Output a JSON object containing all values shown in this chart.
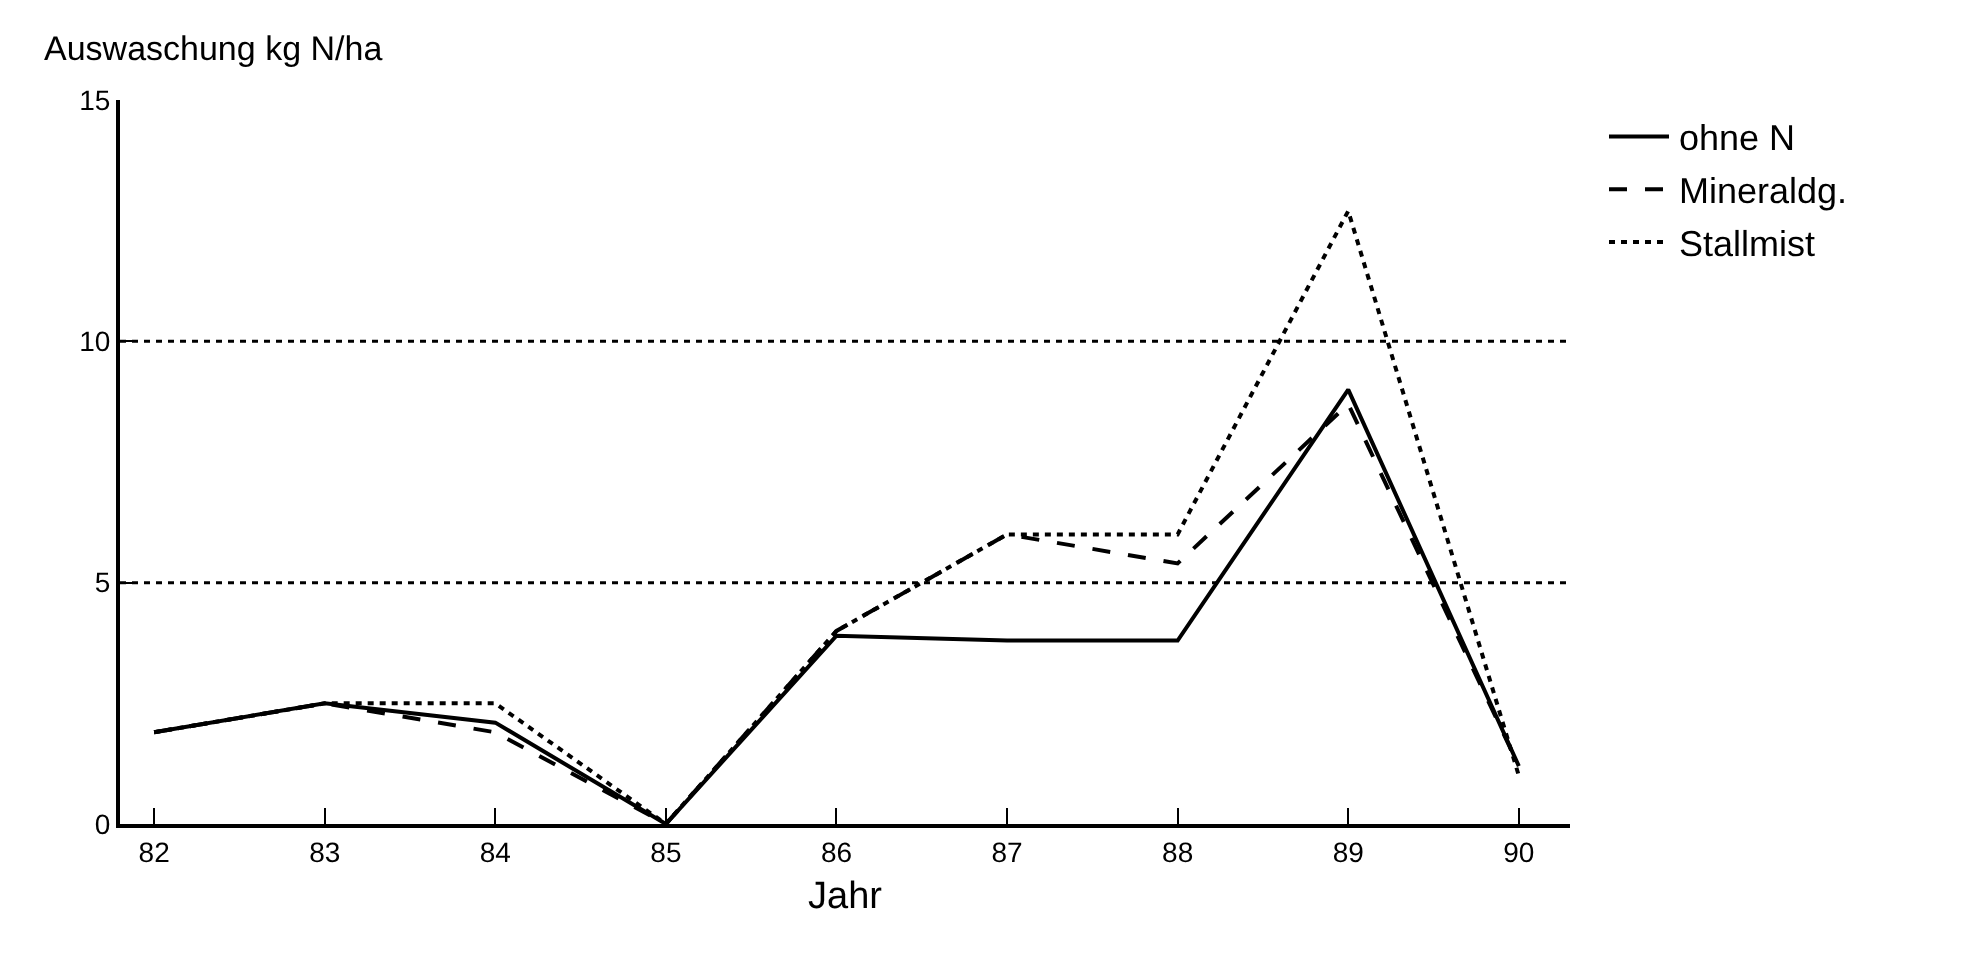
{
  "chart_data": {
    "type": "line",
    "ylabel": "Auswaschung kg N/ha",
    "xlabel": "Jahr",
    "x": [
      82,
      83,
      84,
      85,
      86,
      87,
      88,
      89,
      90
    ],
    "series": [
      {
        "name": "ohne N",
        "color": "#000000",
        "line_style": "solid",
        "values": [
          1.9,
          2.5,
          2.1,
          0,
          3.9,
          3.8,
          3.8,
          9.0,
          1.2
        ]
      },
      {
        "name": "Mineraldg.",
        "color": "#000000",
        "line_style": "dashed",
        "values": [
          1.9,
          2.5,
          1.9,
          0,
          4.0,
          6.0,
          5.4,
          8.7,
          1.2
        ]
      },
      {
        "name": "Stallmist",
        "color": "#000000",
        "line_style": "dotted",
        "values": [
          1.9,
          2.5,
          2.5,
          0,
          4.0,
          6.0,
          6.0,
          12.7,
          1.0
        ]
      }
    ],
    "xlim": [
      81.8,
      90.3
    ],
    "ylim": [
      0,
      15
    ],
    "xticks": [
      82,
      83,
      84,
      85,
      86,
      87,
      88,
      89,
      90
    ],
    "yticks": [
      0,
      5,
      10,
      15
    ],
    "ref_lines": [
      {
        "axis": "y",
        "value": 5,
        "line_style": "dotted",
        "color": "#000000"
      },
      {
        "axis": "y",
        "value": 10,
        "line_style": "dotted",
        "color": "#000000"
      }
    ],
    "grid": false,
    "legend": "right",
    "marker": "none"
  }
}
